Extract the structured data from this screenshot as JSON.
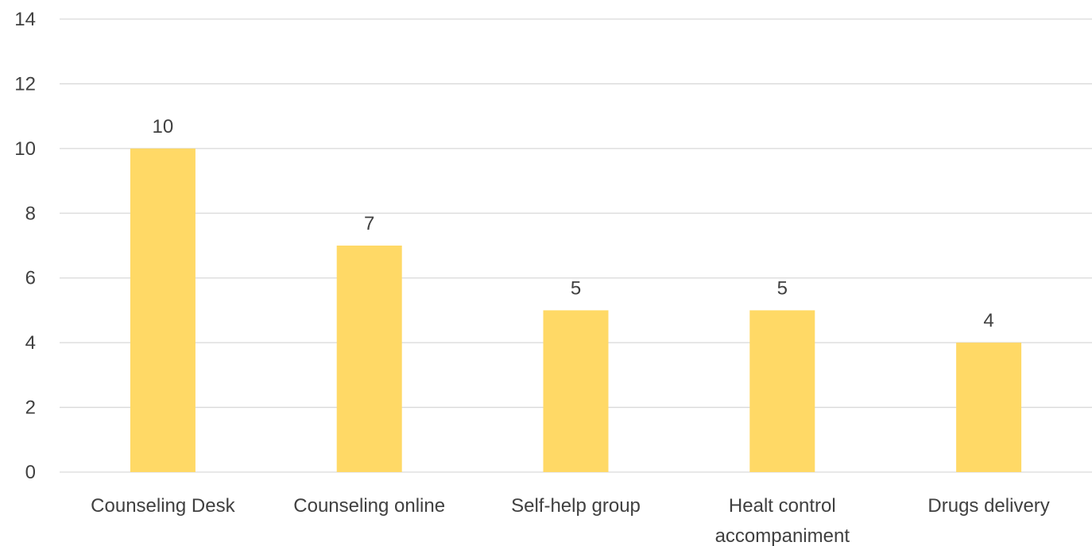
{
  "chart_data": {
    "type": "bar",
    "title": "",
    "xlabel": "",
    "ylabel": "",
    "categories": [
      [
        "Counseling Desk"
      ],
      [
        "Counseling online"
      ],
      [
        "Self-help group"
      ],
      [
        "Healt control",
        "accompaniment"
      ],
      [
        "Drugs delivery"
      ]
    ],
    "values": [
      10,
      7,
      5,
      5,
      4
    ],
    "value_labels": [
      "10",
      "7",
      "5",
      "5",
      "4"
    ],
    "ylim": [
      0,
      14
    ],
    "yticks": [
      0,
      2,
      4,
      6,
      8,
      10,
      12,
      14
    ],
    "ytick_labels": [
      "0",
      "2",
      "4",
      "6",
      "8",
      "10",
      "12",
      "14"
    ],
    "grid": true,
    "legend": "none",
    "colors": {
      "bar": "#FFD966",
      "grid": "#D9D9D9",
      "text": "#404040"
    }
  }
}
